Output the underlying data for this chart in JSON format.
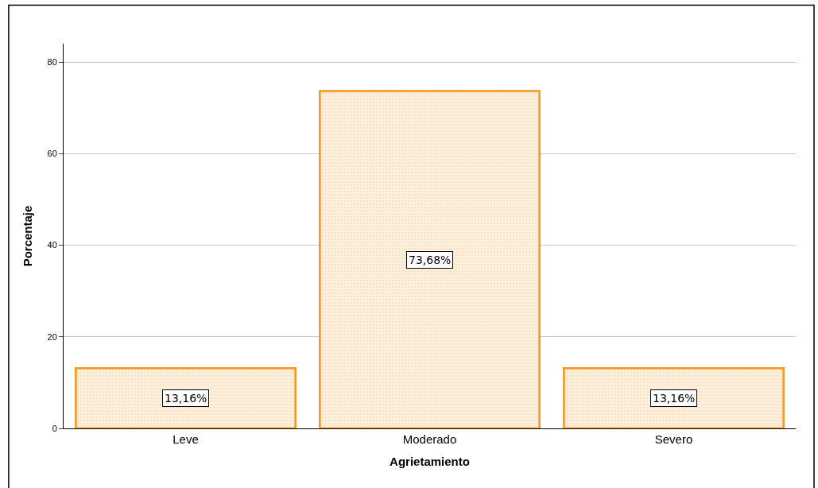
{
  "chart_data": {
    "type": "bar",
    "xlabel": "Agrietamiento",
    "ylabel": "Porcentaje",
    "categories": [
      "Leve",
      "Moderado",
      "Severo"
    ],
    "values": [
      13.16,
      73.68,
      13.16
    ],
    "value_labels": [
      "13,16%",
      "73,68%",
      "13,16%"
    ],
    "color": "#f7941d",
    "ylim": [
      0,
      84
    ],
    "yticks": [
      0,
      20,
      40,
      60,
      80
    ],
    "grid": "y",
    "legend": false
  }
}
